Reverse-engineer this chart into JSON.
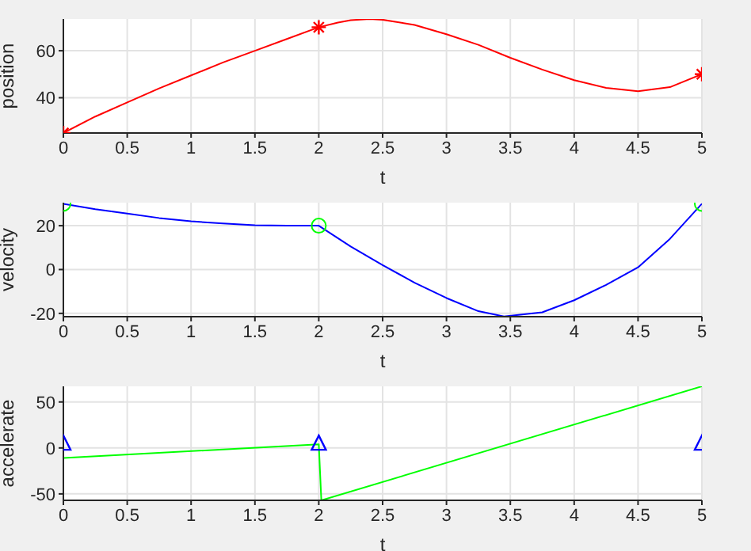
{
  "chart_data": [
    {
      "type": "line",
      "xlabel": "t",
      "ylabel": "position",
      "xlim": [
        0,
        5
      ],
      "xticks": [
        0,
        0.5,
        1,
        1.5,
        2,
        2.5,
        3,
        3.5,
        4,
        4.5,
        5
      ],
      "ylim": [
        25,
        73.5
      ],
      "yticks": [
        40,
        60
      ],
      "grid": true,
      "series": [
        {
          "color": "#ff0000",
          "marker": "none",
          "x": [
            0,
            0.25,
            0.5,
            0.75,
            1,
            1.25,
            1.5,
            1.75,
            2,
            2.15,
            2.25,
            2.4,
            2.5,
            2.75,
            3,
            3.25,
            3.5,
            3.75,
            4,
            4.25,
            4.5,
            4.75,
            5
          ],
          "values": [
            25,
            32,
            38,
            44,
            49.5,
            55,
            60,
            65,
            70,
            72,
            73,
            73.5,
            73.2,
            71,
            67,
            62.5,
            57,
            52,
            47.5,
            44.2,
            42.8,
            44.5,
            50
          ]
        },
        {
          "type": "scatter",
          "color": "#ff0000",
          "marker": "cross",
          "x": [
            0,
            2,
            5
          ],
          "values": [
            25,
            70,
            50
          ]
        }
      ]
    },
    {
      "type": "line",
      "xlabel": "t",
      "ylabel": "velocity",
      "xlim": [
        0,
        5
      ],
      "xticks": [
        0,
        0.5,
        1,
        1.5,
        2,
        2.5,
        3,
        3.5,
        4,
        4.5,
        5
      ],
      "ylim": [
        -21.5,
        30.5
      ],
      "yticks": [
        -20,
        0,
        20
      ],
      "grid": true,
      "series": [
        {
          "color": "#0000ff",
          "marker": "none",
          "x": [
            0,
            0.25,
            0.5,
            0.75,
            1,
            1.25,
            1.5,
            1.75,
            2,
            2.25,
            2.5,
            2.75,
            3,
            3.25,
            3.45,
            3.75,
            4,
            4.25,
            4.5,
            4.75,
            5
          ],
          "values": [
            30,
            27.5,
            25.5,
            23.5,
            22,
            21,
            20.2,
            20,
            20,
            10.5,
            2,
            -6,
            -13,
            -19,
            -21.4,
            -19.5,
            -14,
            -7,
            1,
            14,
            30
          ]
        },
        {
          "type": "scatter",
          "color": "#00ff00",
          "marker": "circle",
          "x": [
            0,
            2,
            5
          ],
          "values": [
            30,
            20,
            30
          ]
        }
      ]
    },
    {
      "type": "line",
      "xlabel": "t",
      "ylabel": "accelerate",
      "xlim": [
        0,
        5
      ],
      "xticks": [
        0,
        0.5,
        1,
        1.5,
        2,
        2.5,
        3,
        3.5,
        4,
        4.5,
        5
      ],
      "ylim": [
        -57,
        67
      ],
      "yticks": [
        -50,
        0,
        50
      ],
      "grid": true,
      "series": [
        {
          "color": "#00ff00",
          "marker": "none",
          "x": [
            0,
            2,
            2.02,
            5
          ],
          "values": [
            -11,
            4,
            -57,
            67
          ]
        },
        {
          "type": "scatter",
          "color": "#0000ff",
          "marker": "triangle",
          "x": [
            0,
            2,
            5
          ],
          "values": [
            4,
            4,
            4
          ]
        }
      ]
    }
  ]
}
